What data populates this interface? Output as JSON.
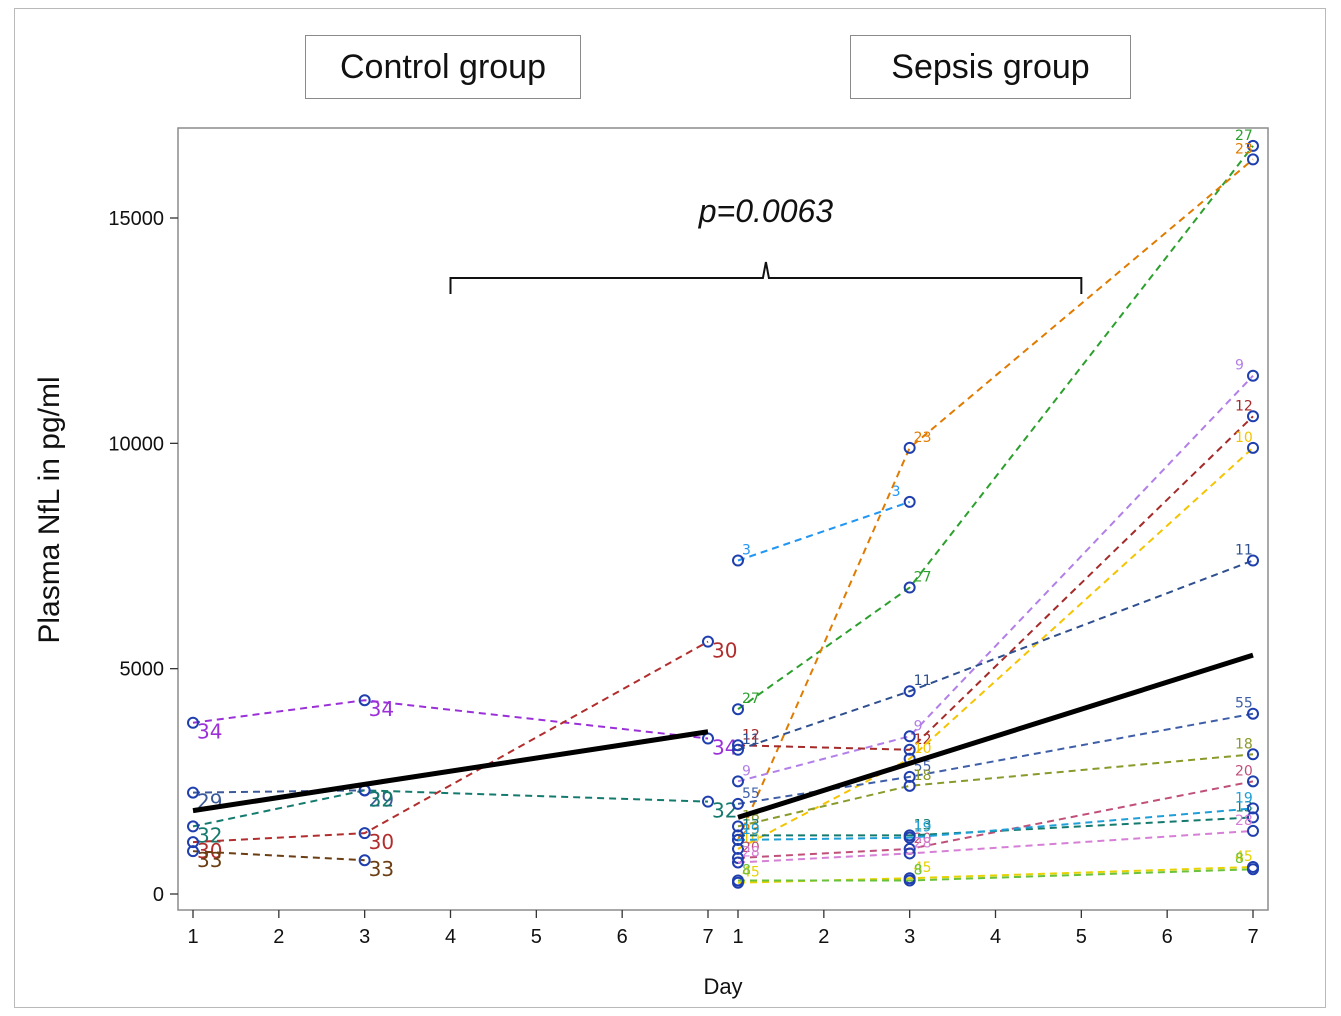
{
  "panel_labels": {
    "control": "Control group",
    "sepsis": "Sepsis group"
  },
  "significance_label": "p=0.0063",
  "chart_data": {
    "type": "line",
    "title": "",
    "xlabel": "Day",
    "ylabel": "Plasma NfL in pg/ml",
    "ylim": [
      0,
      16500
    ],
    "yticks": [
      0,
      5000,
      10000,
      15000
    ],
    "panels": [
      {
        "name": "Control group",
        "xlim": [
          1,
          7
        ],
        "xticks": [
          1,
          2,
          3,
          4,
          5,
          6,
          7
        ],
        "mean_line": {
          "x": [
            1,
            7
          ],
          "y": [
            1850,
            3600
          ]
        },
        "series": [
          {
            "name": "34",
            "color": "#9b30d9",
            "x": [
              1,
              3,
              7
            ],
            "y": [
              3800,
              4300,
              3450
            ]
          },
          {
            "name": "29",
            "color": "#3c5a99",
            "x": [
              1,
              3
            ],
            "y": [
              2250,
              2300
            ]
          },
          {
            "name": "32",
            "color": "#157a6e",
            "x": [
              1,
              3,
              7
            ],
            "y": [
              1500,
              2300,
              2050
            ]
          },
          {
            "name": "30",
            "color": "#b22d2d",
            "x": [
              1,
              3,
              7
            ],
            "y": [
              1150,
              1350,
              5600
            ]
          },
          {
            "name": "33",
            "color": "#6b3d12",
            "x": [
              1,
              3
            ],
            "y": [
              950,
              750
            ]
          }
        ]
      },
      {
        "name": "Sepsis group",
        "xlim": [
          1,
          7
        ],
        "xticks": [
          1,
          2,
          3,
          4,
          5,
          6,
          7
        ],
        "mean_line": {
          "x": [
            1,
            7
          ],
          "y": [
            1700,
            5300
          ]
        },
        "series": [
          {
            "name": "3",
            "color": "#2196f3",
            "x": [
              1,
              3
            ],
            "y": [
              7400,
              8700
            ]
          },
          {
            "name": "27",
            "color": "#2ca02c",
            "x": [
              1,
              3,
              7
            ],
            "y": [
              4100,
              6800,
              16600
            ]
          },
          {
            "name": "23",
            "color": "#e07b00",
            "x": [
              1,
              3,
              7
            ],
            "y": [
              1200,
              9900,
              16300
            ]
          },
          {
            "name": "9",
            "color": "#b27fe8",
            "x": [
              1,
              3,
              7
            ],
            "y": [
              2500,
              3500,
              11500
            ]
          },
          {
            "name": "12",
            "color": "#a52a2a",
            "x": [
              1,
              3,
              7
            ],
            "y": [
              3300,
              3200,
              10600
            ]
          },
          {
            "name": "10",
            "color": "#f5c400",
            "x": [
              1,
              3,
              7
            ],
            "y": [
              1000,
              3000,
              9900
            ]
          },
          {
            "name": "11",
            "color": "#2f4f8f",
            "x": [
              1,
              3,
              7
            ],
            "y": [
              3200,
              4500,
              7400
            ]
          },
          {
            "name": "55",
            "color": "#3e5fa8",
            "x": [
              1,
              3,
              7
            ],
            "y": [
              2000,
              2600,
              4000
            ]
          },
          {
            "name": "18",
            "color": "#8a9a2a",
            "x": [
              1,
              3,
              7
            ],
            "y": [
              1500,
              2400,
              3100
            ]
          },
          {
            "name": "20",
            "color": "#c0507a",
            "x": [
              1,
              3,
              7
            ],
            "y": [
              800,
              1000,
              2500
            ]
          },
          {
            "name": "13",
            "color": "#157a6e",
            "x": [
              1,
              3,
              7
            ],
            "y": [
              1300,
              1300,
              1700
            ]
          },
          {
            "name": "19",
            "color": "#1e9fd8",
            "x": [
              1,
              3,
              7
            ],
            "y": [
              1200,
              1250,
              1900
            ]
          },
          {
            "name": "28",
            "color": "#d67fd6",
            "x": [
              1,
              3,
              7
            ],
            "y": [
              700,
              900,
              1400
            ]
          },
          {
            "name": "45",
            "color": "#e6d200",
            "x": [
              1,
              3,
              7
            ],
            "y": [
              250,
              350,
              600
            ]
          },
          {
            "name": "8",
            "color": "#6ac23b",
            "x": [
              1,
              3,
              7
            ],
            "y": [
              300,
              300,
              550
            ]
          }
        ]
      }
    ],
    "annotation": {
      "text": "p=0.0063",
      "type": "brace",
      "spans": "Control day 4 to Sepsis day 5"
    }
  }
}
